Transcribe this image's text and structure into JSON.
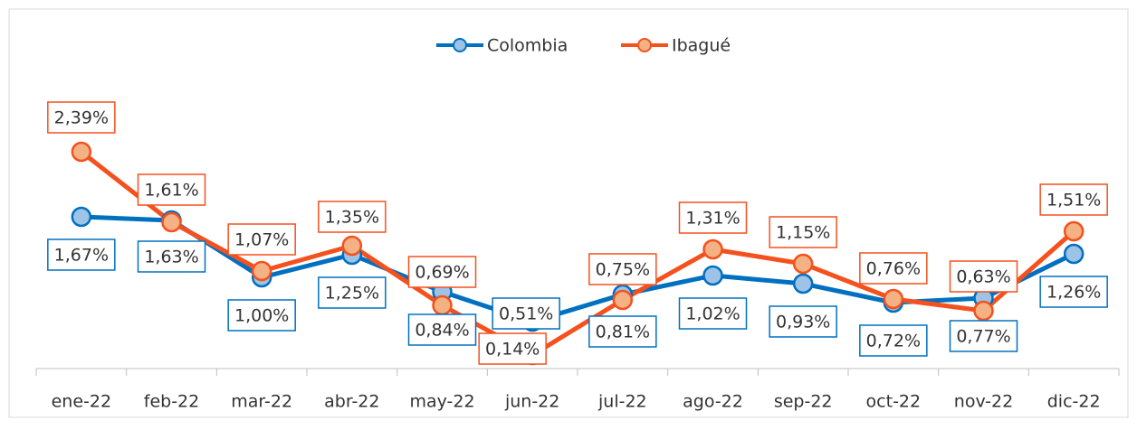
{
  "chart_data": {
    "type": "line",
    "categories": [
      "ene-22",
      "feb-22",
      "mar-22",
      "abr-22",
      "may-22",
      "jun-22",
      "jul-22",
      "ago-22",
      "sep-22",
      "oct-22",
      "nov-22",
      "dic-22"
    ],
    "series": [
      {
        "name": "Colombia",
        "color": "#0070c0",
        "marker_color": "#9dc3e6",
        "values": [
          1.67,
          1.63,
          1.0,
          1.25,
          0.84,
          0.51,
          0.81,
          1.02,
          0.93,
          0.72,
          0.77,
          1.26
        ],
        "value_labels": [
          "1,67%",
          "1,63%",
          "1,00%",
          "1,25%",
          "0,84%",
          "0,51%",
          "0,81%",
          "1,02%",
          "0,93%",
          "0,72%",
          "0,77%",
          "1,26%"
        ]
      },
      {
        "name": "Ibagué",
        "color": "#f4511e",
        "marker_color": "#f4b183",
        "values": [
          2.39,
          1.61,
          1.07,
          1.35,
          0.69,
          0.14,
          0.75,
          1.31,
          1.15,
          0.76,
          0.63,
          1.51
        ],
        "value_labels": [
          "2,39%",
          "1,61%",
          "1,07%",
          "1,35%",
          "0,69%",
          "0,14%",
          "0,75%",
          "1,31%",
          "1,15%",
          "0,76%",
          "0,63%",
          "1,51%"
        ]
      }
    ],
    "ylim": [
      0,
      3.8
    ],
    "legend": "top"
  }
}
